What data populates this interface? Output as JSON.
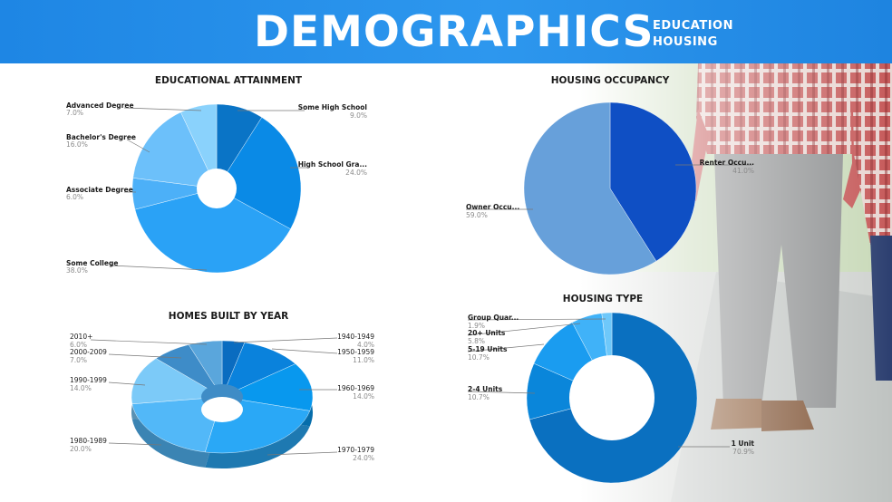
{
  "header": {
    "title": "DEMOGRAPHICS",
    "sub1": "EDUCATION",
    "sub2": "HOUSING"
  },
  "colors": {
    "header": "#1e86e4"
  },
  "chart_data": [
    {
      "id": "education",
      "type": "pie",
      "title": "EDUCATIONAL ATTAINMENT",
      "donut": true,
      "slices": [
        {
          "label": "Some High School",
          "pct": "9.0%",
          "value": 9.0,
          "color": "#0a74c6"
        },
        {
          "label": "High School Gra...",
          "pct": "24.0%",
          "value": 24.0,
          "color": "#0a8ae6"
        },
        {
          "label": "Some College",
          "pct": "38.0%",
          "value": 38.0,
          "color": "#2aa2f6"
        },
        {
          "label": "Associate Degree",
          "pct": "6.0%",
          "value": 6.0,
          "color": "#4cb0f8"
        },
        {
          "label": "Bachelor's Degree",
          "pct": "16.0%",
          "value": 16.0,
          "color": "#6cc0fa"
        },
        {
          "label": "Advanced Degree",
          "pct": "7.0%",
          "value": 7.0,
          "color": "#8ad2fc"
        }
      ]
    },
    {
      "id": "occupancy",
      "type": "pie",
      "title": "HOUSING OCCUPANCY",
      "donut": false,
      "slices": [
        {
          "label": "Renter Occu...",
          "pct": "41.0%",
          "value": 41.0,
          "color": "#0f4fc4"
        },
        {
          "label": "Owner Occu...",
          "pct": "59.0%",
          "value": 59.0,
          "color": "#67a0da"
        }
      ]
    },
    {
      "id": "built",
      "type": "pie",
      "title": "HOMES BUILT BY YEAR",
      "donut": true,
      "three_d": true,
      "slices": [
        {
          "label": "1940-1949",
          "pct": "4.0%",
          "value": 4.0,
          "color": "#0a6cc0"
        },
        {
          "label": "1950-1959",
          "pct": "11.0%",
          "value": 11.0,
          "color": "#0a82dc"
        },
        {
          "label": "1960-1969",
          "pct": "14.0%",
          "value": 14.0,
          "color": "#0898ee"
        },
        {
          "label": "1970-1979",
          "pct": "24.0%",
          "value": 24.0,
          "color": "#2aa8f6"
        },
        {
          "label": "1980-1989",
          "pct": "20.0%",
          "value": 20.0,
          "color": "#52b8f8"
        },
        {
          "label": "1990-1999",
          "pct": "14.0%",
          "value": 14.0,
          "color": "#7ccaf8"
        },
        {
          "label": "2000-2009",
          "pct": "7.0%",
          "value": 7.0,
          "color": "#3e8cc8"
        },
        {
          "label": "2010+",
          "pct": "6.0%",
          "value": 6.0,
          "color": "#5aa6dc"
        }
      ]
    },
    {
      "id": "type",
      "type": "pie",
      "title": "HOUSING TYPE",
      "donut": true,
      "slices": [
        {
          "label": "1 Unit",
          "pct": "70.9%",
          "value": 70.9,
          "color": "#0a70c0"
        },
        {
          "label": "2-4 Units",
          "pct": "10.7%",
          "value": 10.7,
          "color": "#0a86da"
        },
        {
          "label": "5-19 Units",
          "pct": "10.7%",
          "value": 10.7,
          "color": "#1a9cf0"
        },
        {
          "label": "20+ Units",
          "pct": "5.8%",
          "value": 5.8,
          "color": "#40b2f8"
        },
        {
          "label": "Group Quar...",
          "pct": "1.9%",
          "value": 1.9,
          "color": "#6ec8fa"
        }
      ]
    }
  ]
}
